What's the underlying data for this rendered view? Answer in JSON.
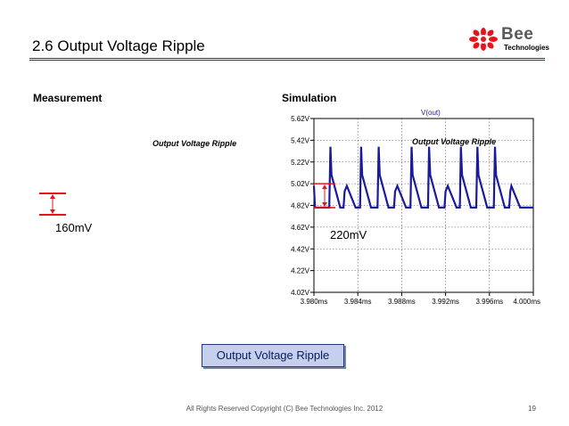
{
  "slide": {
    "title": "2.6 Output Voltage Ripple",
    "footer": "All Rights Reserved Copyright (C) Bee Technologies Inc. 2012",
    "page_number": "19",
    "caption": "Output Voltage Ripple"
  },
  "logo": {
    "word": "Bee",
    "sub": "Technologies",
    "color": "#e8141b"
  },
  "measurement": {
    "heading": "Measurement",
    "label": "Output Voltage Ripple",
    "ripple_value": "160mV"
  },
  "simulation": {
    "heading": "Simulation",
    "label": "Output Voltage Ripple",
    "ripple_value": "220mV"
  },
  "colors": {
    "accent": "#1f3a78",
    "trace": "#1a1a9c",
    "marker": "#e8141b"
  },
  "chart_data": {
    "type": "line",
    "title": "",
    "xlabel": "",
    "ylabel": "",
    "legend": "V(out)",
    "xlim": [
      3.98,
      4.0
    ],
    "ylim": [
      4.02,
      5.62
    ],
    "x_ticks": [
      "3.980ms",
      "3.984ms",
      "3.988ms",
      "3.992ms",
      "3.996ms",
      "4.000ms"
    ],
    "y_ticks": [
      "5.62V",
      "5.42V",
      "5.22V",
      "5.02V",
      "4.82V",
      "4.62V",
      "4.42V",
      "4.22V",
      "4.02V"
    ],
    "grid": true,
    "x_unit": "ms",
    "y_unit": "V",
    "series": [
      {
        "name": "V(out)",
        "x": [
          3.98,
          3.9801,
          3.9808,
          3.9814,
          3.9815,
          3.9816,
          3.9824,
          3.9827,
          3.9828,
          3.983,
          3.9838,
          3.9842,
          3.9843,
          3.9844,
          3.9852,
          3.9858,
          3.9859,
          3.986,
          3.9868,
          3.9873,
          3.9874,
          3.9876,
          3.9884,
          3.9888,
          3.9889,
          3.989,
          3.9898,
          3.9904,
          3.9905,
          3.9906,
          3.9914,
          3.9919,
          3.992,
          3.9922,
          3.993,
          3.9933,
          3.9934,
          3.9935,
          3.9943,
          3.9948,
          3.9949,
          3.995,
          3.9958,
          3.9964,
          3.9965,
          3.9966,
          3.9974,
          3.9978,
          3.9979,
          3.998,
          3.9988,
          4.0
        ],
        "y": [
          5.0,
          4.8,
          4.8,
          4.8,
          5.36,
          5.1,
          4.8,
          4.8,
          4.95,
          5.0,
          4.8,
          4.8,
          5.36,
          5.1,
          4.8,
          4.8,
          5.36,
          5.1,
          4.8,
          4.8,
          4.95,
          5.0,
          4.8,
          4.8,
          5.36,
          5.1,
          4.8,
          4.8,
          5.36,
          5.1,
          4.8,
          4.8,
          4.95,
          5.0,
          4.8,
          4.8,
          5.36,
          5.1,
          4.8,
          4.8,
          5.36,
          5.1,
          4.8,
          4.8,
          5.36,
          5.1,
          4.8,
          4.8,
          4.95,
          5.0,
          4.8,
          4.8
        ]
      }
    ],
    "ripple_marker": {
      "y_high": 5.02,
      "y_low": 4.8
    }
  }
}
